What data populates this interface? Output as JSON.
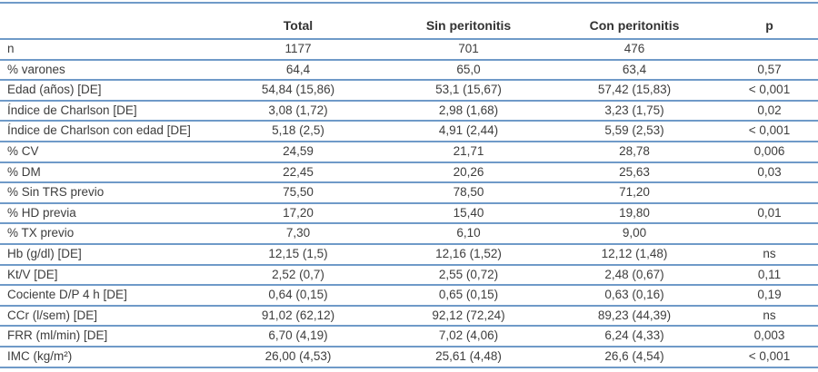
{
  "colors": {
    "rule_blue": "#6f9ac8",
    "text": "#3d3d3d",
    "header_text": "#333333",
    "background": "#ffffff"
  },
  "table": {
    "columns": [
      "",
      "Total",
      "Sin peritonitis",
      "Con peritonitis",
      "p"
    ],
    "rows": [
      {
        "label": "n",
        "values": [
          "1177",
          "701",
          "476",
          ""
        ]
      },
      {
        "label": "% varones",
        "values": [
          "64,4",
          "65,0",
          "63,4",
          "0,57"
        ]
      },
      {
        "label": "Edad (años) [DE]",
        "values": [
          "54,84 (15,86)",
          "53,1 (15,67)",
          "57,42 (15,83)",
          "< 0,001"
        ]
      },
      {
        "label": "Índice de Charlson [DE]",
        "values": [
          "3,08 (1,72)",
          "2,98 (1,68)",
          "3,23 (1,75)",
          "0,02"
        ]
      },
      {
        "label": "Índice de Charlson con edad [DE]",
        "values": [
          "5,18 (2,5)",
          "4,91 (2,44)",
          "5,59 (2,53)",
          "< 0,001"
        ]
      },
      {
        "label": "% CV",
        "values": [
          "24,59",
          "21,71",
          "28,78",
          "0,006"
        ]
      },
      {
        "label": "% DM",
        "values": [
          "22,45",
          "20,26",
          "25,63",
          "0,03"
        ]
      },
      {
        "label": "% Sin TRS previo",
        "values": [
          "75,50",
          "78,50",
          "71,20",
          ""
        ]
      },
      {
        "label": "% HD previa",
        "values": [
          "17,20",
          "15,40",
          "19,80",
          "0,01"
        ]
      },
      {
        "label": "% TX previo",
        "values": [
          "7,30",
          "6,10",
          "9,00",
          ""
        ]
      },
      {
        "label": "Hb (g/dl) [DE]",
        "values": [
          "12,15 (1,5)",
          "12,16 (1,52)",
          "12,12 (1,48)",
          "ns"
        ]
      },
      {
        "label": "Kt/V [DE]",
        "values": [
          "2,52 (0,7)",
          "2,55 (0,72)",
          "2,48 (0,67)",
          "0,11"
        ]
      },
      {
        "label": "Cociente D/P 4 h [DE]",
        "values": [
          "0,64 (0,15)",
          "0,65 (0,15)",
          "0,63 (0,16)",
          "0,19"
        ]
      },
      {
        "label": "CCr (l/sem) [DE]",
        "values": [
          "91,02 (62,12)",
          "92,12 (72,24)",
          "89,23 (44,39)",
          "ns"
        ]
      },
      {
        "label": "FRR (ml/min) [DE]",
        "values": [
          "6,70 (4,19)",
          "7,02 (4,06)",
          "6,24 (4,33)",
          "0,003"
        ]
      },
      {
        "label": "IMC (kg/m²)",
        "values": [
          "26,00 (4,53)",
          "25,61 (4,48)",
          "26,6 (4,54)",
          "< 0,001"
        ]
      }
    ]
  }
}
